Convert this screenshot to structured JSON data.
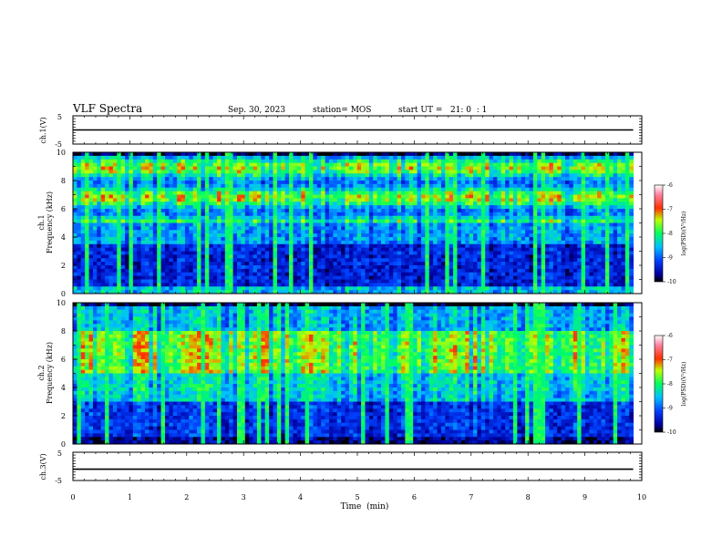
{
  "header": {
    "title": "VLF Spectra",
    "date": "Sep. 30, 2023",
    "station": "station= MOS",
    "start_ut": "start UT =   21: 0  : 1"
  },
  "chart_data": [
    {
      "type": "line",
      "name": "ch1-waveform",
      "ylabel": "ch.1(V)",
      "ylim": [
        -5,
        5
      ],
      "yticks": [
        "5",
        "-5"
      ],
      "xlim": [
        0,
        10
      ],
      "x": [
        0,
        2,
        4,
        6,
        8,
        9.85
      ],
      "y": [
        0,
        0,
        0,
        0,
        0,
        0
      ]
    },
    {
      "type": "heatmap",
      "name": "ch1-spectrogram",
      "ylabel_line1": "ch.1",
      "ylabel_line2": "Frequency (kHz)",
      "ylim": [
        0,
        10
      ],
      "yticks": [
        "0",
        "2",
        "4",
        "6",
        "8",
        "10"
      ],
      "xlim": [
        0,
        10
      ],
      "data_end_min": 9.85,
      "colorbar": {
        "label": "log(PSD)(V²/Hz)",
        "ticks": [
          "-6",
          "-7",
          "-8",
          "-9",
          "-10"
        ],
        "range": [
          -10,
          -6
        ]
      }
    },
    {
      "type": "heatmap",
      "name": "ch2-spectrogram",
      "ylabel_line1": "ch.2",
      "ylabel_line2": "Frequency (kHz)",
      "ylim": [
        0,
        10
      ],
      "yticks": [
        "0",
        "2",
        "4",
        "6",
        "8",
        "10"
      ],
      "xlim": [
        0,
        10
      ],
      "data_end_min": 9.85,
      "colorbar": {
        "label": "log(PSD)(V²/Hz)",
        "ticks": [
          "-6",
          "-7",
          "-8",
          "-9",
          "-10"
        ],
        "range": [
          -10,
          -6
        ]
      }
    },
    {
      "type": "line",
      "name": "ch3-waveform",
      "ylabel": "ch.3(V)",
      "ylim": [
        -5,
        5
      ],
      "yticks": [
        "5",
        "-5"
      ],
      "xlim": [
        0,
        10
      ],
      "x": [
        0,
        2,
        4,
        6,
        8,
        9.85
      ],
      "y": [
        -1,
        -1,
        -1,
        -1,
        -1,
        -1
      ],
      "xlabel": "Time  (min)",
      "xticks": [
        "0",
        "1",
        "2",
        "3",
        "4",
        "5",
        "6",
        "7",
        "8",
        "9",
        "10"
      ]
    }
  ]
}
